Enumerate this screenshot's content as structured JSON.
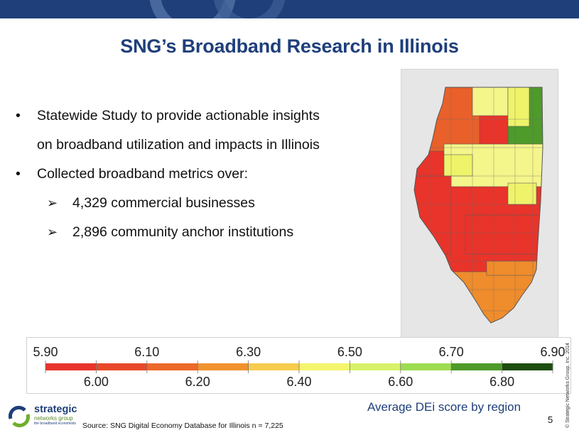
{
  "header": {
    "title": "SNG’s Broadband Research in Illinois"
  },
  "bullets": [
    {
      "marker": "•",
      "lines": [
        "Statewide Study to provide actionable insights",
        "on broadband utilization and impacts in Illinois"
      ]
    },
    {
      "marker": "•",
      "lines": [
        "Collected broadband metrics over:"
      ]
    }
  ],
  "sub_bullets": [
    {
      "marker": "➢",
      "text": "4,329 commercial businesses"
    },
    {
      "marker": "➢",
      "text": "2,896 community anchor institutions"
    }
  ],
  "map": {
    "region_colors": {
      "red": "#e8342a",
      "orange_red": "#e9602a",
      "orange": "#ef8c2c",
      "yellow": "#eef36a",
      "light_yellow": "#f4f58a",
      "green": "#4e9a2a",
      "dark_green": "#3f8a22"
    }
  },
  "legend": {
    "top_ticks": [
      "5.90",
      "6.10",
      "6.30",
      "6.50",
      "6.70",
      "6.90"
    ],
    "bottom_ticks": [
      "6.00",
      "6.20",
      "6.40",
      "6.60",
      "6.80"
    ],
    "segment_colors": [
      "#e8342a",
      "#e9492a",
      "#ec692b",
      "#f0932e",
      "#f6cc4e",
      "#f4f56e",
      "#d8f26a",
      "#9edc52",
      "#4e9a2a",
      "#1e4d10"
    ]
  },
  "caption": "Average DEi score by region",
  "source": "Source: SNG Digital Economy Database for Illinois  n = 7,225",
  "page_number": "5",
  "copyright": "© Strategic Networks Group, Inc. 2014",
  "logo": {
    "name_line1": "strategic",
    "name_line2": "networks group",
    "tagline": "the broadband economists"
  }
}
